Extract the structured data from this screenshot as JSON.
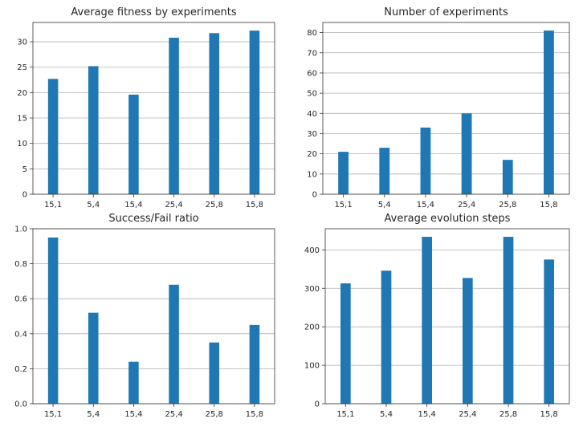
{
  "colors": {
    "bar": "#1f77b4",
    "grid": "#b0b0b0",
    "axes": "#333333"
  },
  "chart_data": [
    {
      "type": "bar",
      "title": "Average fitness by experiments",
      "categories": [
        "15,1",
        "5,4",
        "15,4",
        "25,4",
        "25,8",
        "15,8"
      ],
      "values": [
        22.7,
        25.2,
        19.6,
        30.8,
        31.7,
        32.2
      ],
      "ylim": [
        0,
        33.8
      ],
      "yticks": [
        0,
        5,
        10,
        15,
        20,
        25,
        30
      ],
      "ytick_labels": [
        "0",
        "5",
        "10",
        "15",
        "20",
        "25",
        "30"
      ],
      "grid": "y",
      "xlabel": "",
      "ylabel": ""
    },
    {
      "type": "bar",
      "title": "Number of experiments",
      "categories": [
        "15,1",
        "5,4",
        "15,4",
        "25,4",
        "25,8",
        "15,8"
      ],
      "values": [
        21,
        23,
        33,
        40,
        17,
        81
      ],
      "ylim": [
        0,
        85
      ],
      "yticks": [
        0,
        10,
        20,
        30,
        40,
        50,
        60,
        70,
        80
      ],
      "ytick_labels": [
        "0",
        "10",
        "20",
        "30",
        "40",
        "50",
        "60",
        "70",
        "80"
      ],
      "grid": "y",
      "xlabel": "",
      "ylabel": ""
    },
    {
      "type": "bar",
      "title": "Success/Fail ratio",
      "categories": [
        "15,1",
        "5,4",
        "15,4",
        "25,4",
        "25,8",
        "15,8"
      ],
      "values": [
        0.95,
        0.52,
        0.24,
        0.68,
        0.35,
        0.45
      ],
      "ylim": [
        0,
        1.0
      ],
      "yticks": [
        0,
        0.2,
        0.4,
        0.6,
        0.8,
        1.0
      ],
      "ytick_labels": [
        "0.0",
        "0.2",
        "0.4",
        "0.6",
        "0.8",
        "1.0"
      ],
      "grid": "y",
      "xlabel": "",
      "ylabel": ""
    },
    {
      "type": "bar",
      "title": "Average evolution steps",
      "categories": [
        "15,1",
        "5,4",
        "15,4",
        "25,4",
        "25,8",
        "15,8"
      ],
      "values": [
        313,
        346,
        434,
        327,
        434,
        375
      ],
      "ylim": [
        0,
        455
      ],
      "yticks": [
        0,
        100,
        200,
        300,
        400
      ],
      "ytick_labels": [
        "0",
        "100",
        "200",
        "300",
        "400"
      ],
      "grid": "y",
      "xlabel": "",
      "ylabel": ""
    }
  ]
}
